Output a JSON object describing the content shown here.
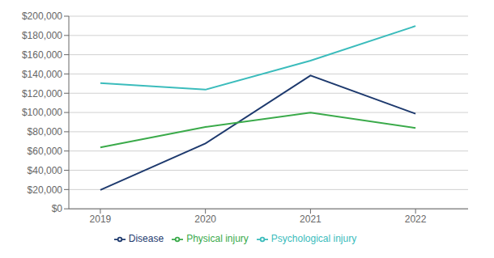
{
  "chart_data": {
    "type": "line",
    "x": [
      2019,
      2020,
      2021,
      2022
    ],
    "series": [
      {
        "name": "Disease",
        "color": "#1e3a6e",
        "values": [
          19500,
          67800,
          138400,
          98700
        ]
      },
      {
        "name": "Psychological injury",
        "color": "#3bbcbc",
        "values": [
          130600,
          123700,
          153800,
          189800
        ]
      },
      {
        "name": "Physical injury",
        "color": "#3aaa4a",
        "values": [
          63700,
          85000,
          99800,
          83900
        ]
      }
    ],
    "xlim": [
      2018.7,
      2022.5
    ],
    "xticks": [
      2019,
      2020,
      2021,
      2022
    ],
    "ylim": [
      0,
      200000
    ],
    "yticks": [
      {
        "value": 0,
        "label": "$0"
      },
      {
        "value": 20000,
        "label": "$20,000"
      },
      {
        "value": 40000,
        "label": "$40,000"
      },
      {
        "value": 60000,
        "label": "$60,000"
      },
      {
        "value": 80000,
        "label": "$80,000"
      },
      {
        "value": 100000,
        "label": "$100,000"
      },
      {
        "value": 120000,
        "label": "$120,000"
      },
      {
        "value": 140000,
        "label": "$140,000"
      },
      {
        "value": 160000,
        "label": "$160,000"
      },
      {
        "value": 180000,
        "label": "$180,000"
      },
      {
        "value": 200000,
        "label": "$200,000"
      }
    ],
    "grid": true,
    "legend": "bottom"
  }
}
